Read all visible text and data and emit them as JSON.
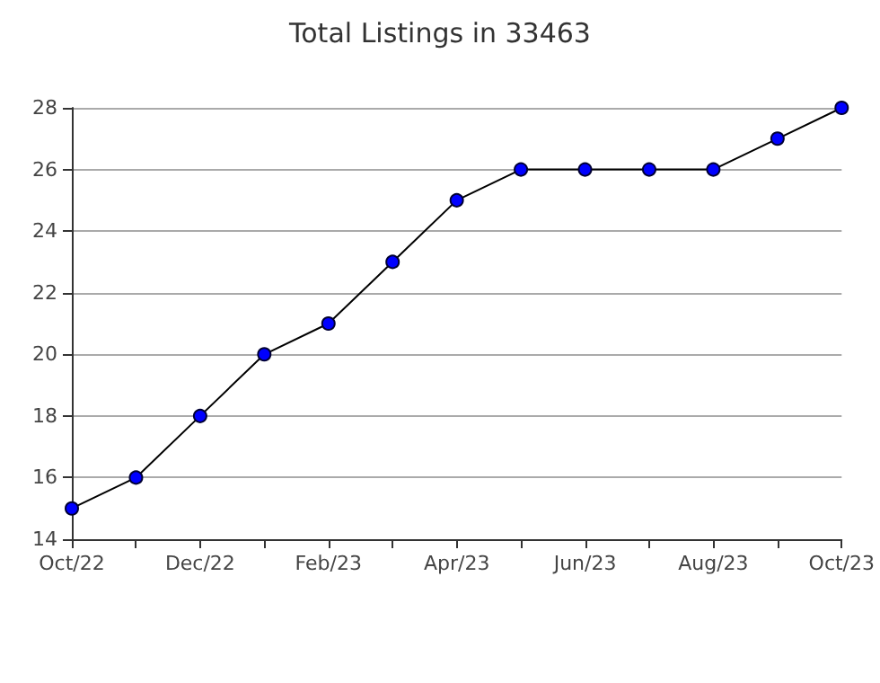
{
  "chart_data": {
    "type": "line",
    "title": "Total Listings in 33463",
    "categories": [
      "Oct/22",
      null,
      "Dec/22",
      null,
      "Feb/23",
      null,
      "Apr/23",
      null,
      "Jun/23",
      null,
      "Aug/23",
      null,
      "Oct/23"
    ],
    "series": [
      {
        "color": "#0000ff",
        "values": [
          15,
          16,
          18,
          20,
          21,
          23,
          25,
          26,
          26,
          26,
          26,
          27,
          28
        ]
      }
    ],
    "ylim": [
      14,
      28
    ],
    "yticks": [
      14,
      16,
      18,
      20,
      22,
      24,
      26,
      28
    ],
    "grid": "y",
    "marker": "circle",
    "line_style": "solid",
    "legend": false
  }
}
